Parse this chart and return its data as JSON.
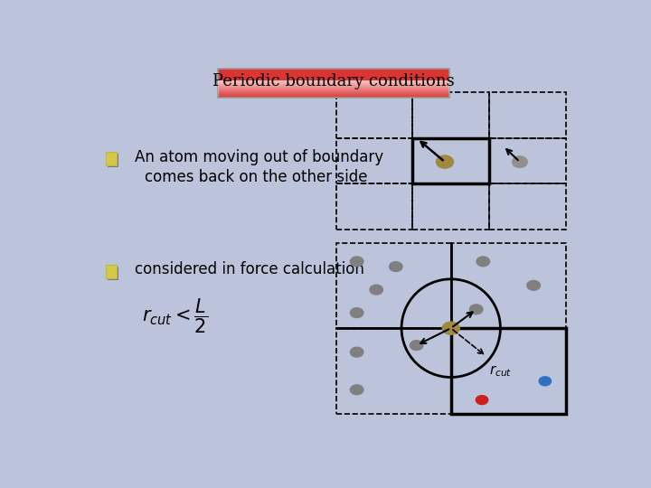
{
  "bg_color": "#bcc4dc",
  "title": "Periodic boundary conditions",
  "bullet_color": "#d4c84a",
  "bullet_shadow": "#888888",
  "text1": "An atom moving out of boundary",
  "text2": "comes back on the other side",
  "text3": "considered in force calculation",
  "atom1_color": "#a08840",
  "atom2_color": "#909090",
  "gray_atom_color": "#808080",
  "blue_atom_color": "#3070c0",
  "red_atom_color": "#cc2020",
  "center_atom_color": "#a08840",
  "d1x": 0.505,
  "d1y": 0.545,
  "d1w": 0.455,
  "d1h": 0.365,
  "d2x": 0.505,
  "d2y": 0.055,
  "d2w": 0.455,
  "d2h": 0.455
}
